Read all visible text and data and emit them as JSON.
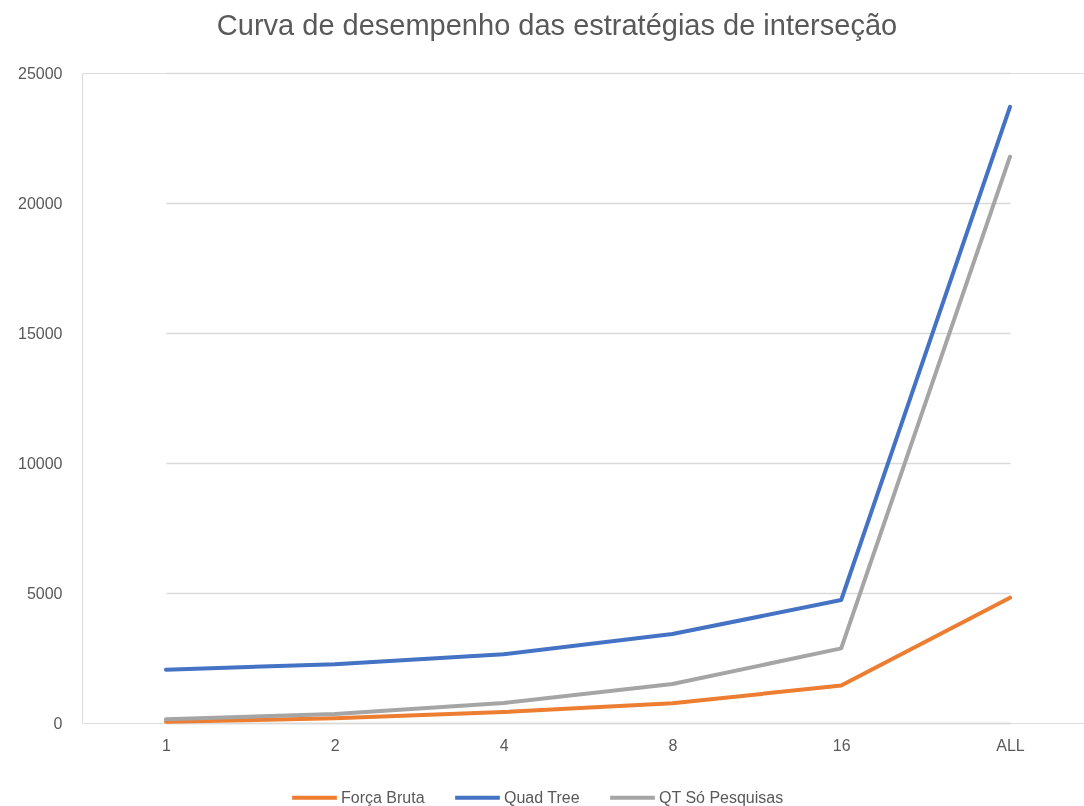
{
  "chart_data": {
    "type": "line",
    "title": "Curva de desempenho das estratégias de interseção",
    "categories": [
      "1",
      "2",
      "4",
      "8",
      "16",
      "ALL"
    ],
    "series": [
      {
        "name": "Força Bruta",
        "color": "#ed7d31",
        "values": [
          50,
          180,
          420,
          760,
          1440,
          4820
        ]
      },
      {
        "name": "Quad Tree",
        "color": "#4472c4",
        "values": [
          2050,
          2260,
          2640,
          3420,
          4730,
          23700
        ]
      },
      {
        "name": "QT Só Pesquisas",
        "color": "#a5a5a5",
        "values": [
          140,
          350,
          770,
          1500,
          2870,
          21780
        ]
      }
    ],
    "ylim": [
      0,
      25000
    ],
    "yticks": [
      0,
      5000,
      10000,
      15000,
      20000,
      25000
    ],
    "grid": "y",
    "legend": "bottom",
    "line_style": "solid"
  }
}
